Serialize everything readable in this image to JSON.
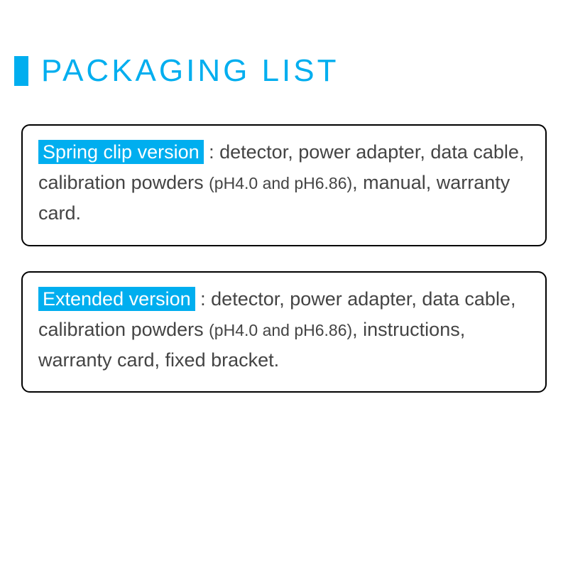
{
  "colors": {
    "accent": "#00aeef",
    "text": "#444444",
    "background": "#ffffff",
    "border": "#000000"
  },
  "title": "PACKAGING LIST",
  "boxes": [
    {
      "version_label": "Spring clip version",
      "separator": " : ",
      "contents_before_paren": "detector, power adapter, data cable, calibration powders ",
      "parenthetical": "(pH4.0 and pH6.86)",
      "contents_after_paren": ", manual, warranty card."
    },
    {
      "version_label": "Extended version",
      "separator": " : ",
      "contents_before_paren": "detector, power adapter, data cable, calibration powders ",
      "parenthetical": "(pH4.0 and pH6.86)",
      "contents_after_paren": ", instructions, warranty card, fixed bracket."
    }
  ],
  "typography": {
    "title_fontsize": 44,
    "body_fontsize": 27,
    "parenthetical_fontsize": 23,
    "title_letter_spacing": 4
  },
  "layout": {
    "border_radius": 12,
    "border_width": 2,
    "box_margin_bottom": 35
  }
}
